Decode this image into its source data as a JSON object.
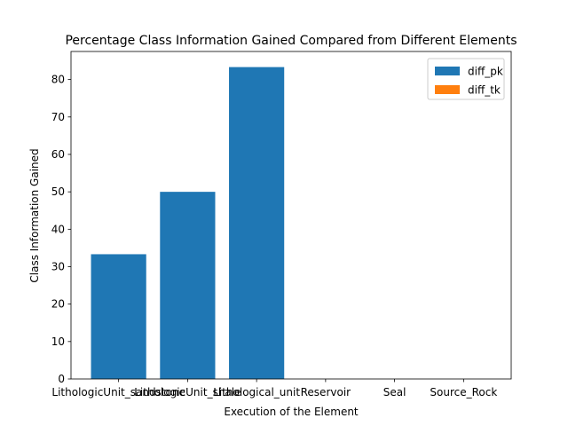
{
  "chart_data": {
    "type": "bar",
    "title": "Percentage Class Information Gained Compared from Different Elements",
    "xlabel": "Execution of the Element",
    "ylabel": "Class Information Gained",
    "categories": [
      "LithologicUnit_sandstone",
      "LithologicUnit_shale",
      "Lithological_unit",
      "Reservoir",
      "Seal",
      "Source_Rock"
    ],
    "series": [
      {
        "name": "diff_pk",
        "color": "#1f77b4",
        "values": [
          33.33,
          50.0,
          83.33,
          0,
          0,
          0
        ]
      },
      {
        "name": "diff_tk",
        "color": "#ff7f0e",
        "values": [
          0,
          0,
          0,
          0,
          0,
          0
        ]
      }
    ],
    "ylim": [
      0,
      87.5
    ],
    "yticks": [
      0,
      10,
      20,
      30,
      40,
      50,
      60,
      70,
      80
    ],
    "legend_position": "top-right",
    "grid": false
  }
}
